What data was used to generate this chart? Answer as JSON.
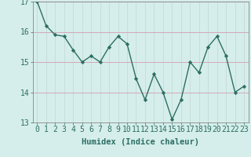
{
  "x": [
    0,
    1,
    2,
    3,
    4,
    5,
    6,
    7,
    8,
    9,
    10,
    11,
    12,
    13,
    14,
    15,
    16,
    17,
    18,
    19,
    20,
    21,
    22,
    23
  ],
  "y": [
    17.0,
    16.2,
    15.9,
    15.85,
    15.4,
    15.0,
    15.2,
    15.0,
    15.5,
    15.85,
    15.6,
    14.45,
    13.75,
    14.6,
    14.0,
    13.1,
    13.75,
    15.0,
    14.65,
    15.5,
    15.85,
    15.2,
    14.0,
    14.2
  ],
  "line_color": "#2d6e63",
  "marker": "D",
  "marker_size": 2.2,
  "background_color": "#d5eeeb",
  "grid_color_major": "#c8b8c8",
  "grid_color_minor": "#c8ddd8",
  "tick_color": "#2d6e63",
  "xlabel": "Humidex (Indice chaleur)",
  "ylim": [
    13,
    17
  ],
  "xlim_min": -0.5,
  "xlim_max": 23.5,
  "yticks": [
    13,
    14,
    15,
    16,
    17
  ],
  "xticks": [
    0,
    1,
    2,
    3,
    4,
    5,
    6,
    7,
    8,
    9,
    10,
    11,
    12,
    13,
    14,
    15,
    16,
    17,
    18,
    19,
    20,
    21,
    22,
    23
  ],
  "xlabel_fontsize": 7.5,
  "tick_fontsize": 7,
  "line_width": 1.0
}
